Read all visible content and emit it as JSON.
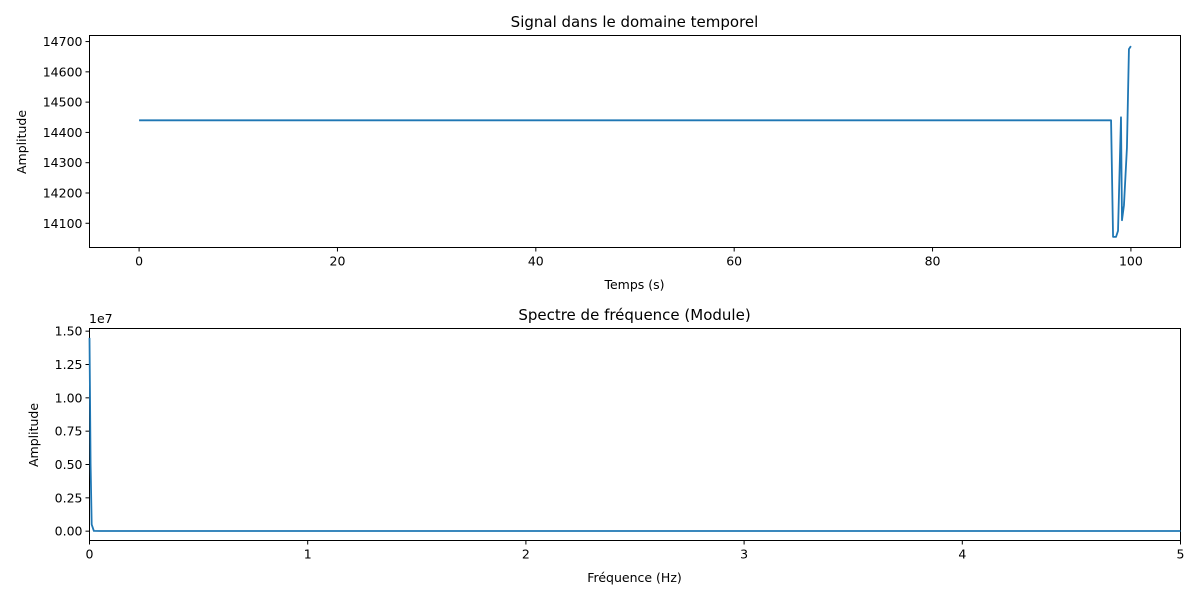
{
  "chart_data": [
    {
      "type": "line",
      "title": "Signal dans le domaine temporel",
      "xlabel": "Temps (s)",
      "ylabel": "Amplitude",
      "xlim": [
        -5,
        105
      ],
      "ylim": [
        14020,
        14720
      ],
      "xticks": [
        0,
        20,
        40,
        60,
        80,
        100
      ],
      "xtick_labels": [
        "0",
        "20",
        "40",
        "60",
        "80",
        "100"
      ],
      "yticks": [
        14100,
        14200,
        14300,
        14400,
        14500,
        14600,
        14700
      ],
      "ytick_labels": [
        "14100",
        "14200",
        "14300",
        "14400",
        "14500",
        "14600",
        "14700"
      ],
      "color": "#1f77b4",
      "grid": false,
      "series": [
        {
          "x": [
            0,
            10,
            20,
            30,
            40,
            50,
            60,
            70,
            80,
            90,
            98.0,
            98.2,
            98.5,
            98.7,
            99.0,
            99.1,
            99.3,
            99.6,
            99.8,
            100.0
          ],
          "y": [
            14440,
            14440,
            14440,
            14440,
            14440,
            14440,
            14440,
            14440,
            14440,
            14440,
            14440,
            14055,
            14055,
            14075,
            14450,
            14110,
            14160,
            14350,
            14675,
            14685
          ]
        }
      ]
    },
    {
      "type": "line",
      "title": "Spectre de fréquence (Module)",
      "xlabel": "Fréquence (Hz)",
      "ylabel": "Amplitude",
      "offset_text": "1e7",
      "xlim": [
        0,
        5
      ],
      "ylim": [
        -0.07,
        1.52
      ],
      "xticks": [
        0,
        1,
        2,
        3,
        4,
        5
      ],
      "xtick_labels": [
        "0",
        "1",
        "2",
        "3",
        "4",
        "5"
      ],
      "yticks": [
        0.0,
        0.25,
        0.5,
        0.75,
        1.0,
        1.25,
        1.5
      ],
      "ytick_labels": [
        "0.00",
        "0.25",
        "0.50",
        "0.75",
        "1.00",
        "1.25",
        "1.50"
      ],
      "color": "#1f77b4",
      "grid": false,
      "series": [
        {
          "x": [
            0,
            0.005,
            0.01,
            0.02,
            0.05,
            1,
            2,
            3,
            4,
            5
          ],
          "y": [
            1.45,
            0.5,
            0.05,
            0.002,
            0.001,
            0.001,
            0.001,
            0.001,
            0.001,
            0.001
          ]
        }
      ]
    }
  ]
}
